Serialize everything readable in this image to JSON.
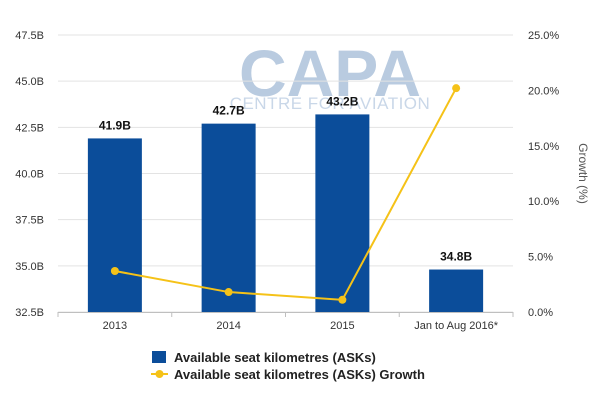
{
  "watermark": {
    "brand": "CAPA",
    "tagline": "CENTRE FOR AVIATION"
  },
  "colors": {
    "bar": "#0b4d9a",
    "line": "#f5c218",
    "grid": "#e3e3e3"
  },
  "chart_data": {
    "type": "bar",
    "categories": [
      "2013",
      "2014",
      "2015",
      "Jan to Aug 2016*"
    ],
    "series": [
      {
        "name": "Available seat kilometres (ASKs)",
        "type": "bar",
        "axis": "left",
        "values": [
          41.9,
          42.7,
          43.2,
          34.8
        ],
        "labels": [
          "41.9B",
          "42.7B",
          "43.2B",
          "34.8B"
        ]
      },
      {
        "name": "Available seat kilometres (ASKs) Growth",
        "type": "line",
        "axis": "right",
        "values": [
          3.7,
          1.8,
          1.1,
          20.2
        ]
      }
    ],
    "y_left": {
      "range": [
        32.5,
        47.5
      ],
      "ticks": [
        32.5,
        35.0,
        37.5,
        40.0,
        42.5,
        45.0,
        47.5
      ],
      "tick_labels": [
        "32.5B",
        "35.0B",
        "37.5B",
        "40.0B",
        "42.5B",
        "45.0B",
        "47.5B"
      ],
      "label": ""
    },
    "y_right": {
      "range": [
        0,
        25
      ],
      "ticks": [
        0,
        5,
        10,
        15,
        20,
        25
      ],
      "tick_labels": [
        "0.0%",
        "5.0%",
        "10.0%",
        "15.0%",
        "20.0%",
        "25.0%"
      ],
      "label": "Growth (%)"
    },
    "grid": true,
    "legend_position": "bottom"
  }
}
